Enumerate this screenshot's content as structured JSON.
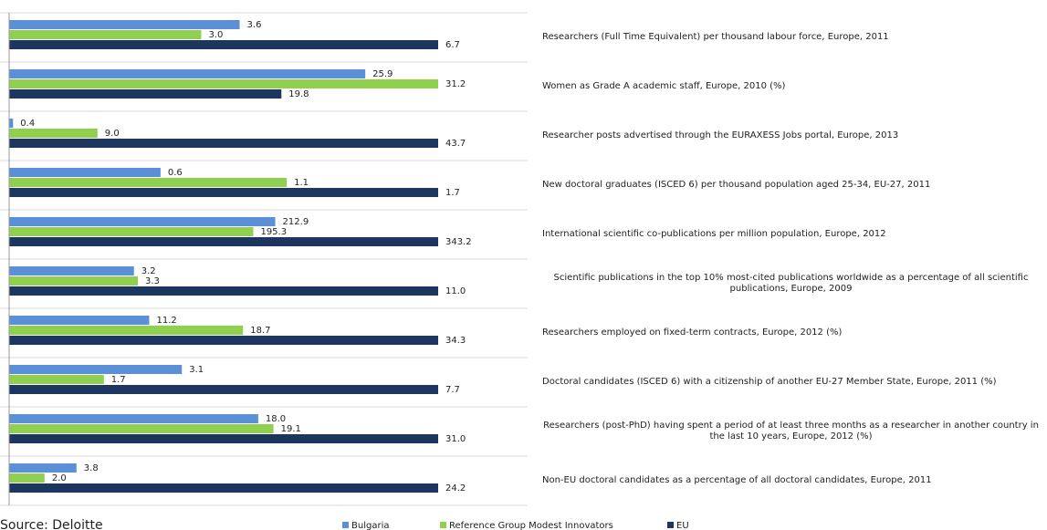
{
  "chart_data": {
    "type": "bar",
    "orientation": "horizontal",
    "source": "Source: Deloitte",
    "categories": [
      "Researchers (Full Time Equivalent) per thousand labour force, Europe, 2011",
      "Women as Grade A academic staff, Europe, 2010 (%)",
      "Researcher posts advertised through the EURAXESS Jobs portal, Europe, 2013",
      "New doctoral graduates (ISCED 6) per thousand population aged 25-34, EU-27, 2011",
      "International scientific co-publications per million population, Europe, 2012",
      "Scientific publications in the top 10% most-cited publications worldwide as a percentage of all scientific publications, Europe, 2009",
      "Researchers employed on fixed-term contracts, Europe, 2012 (%)",
      "Doctoral candidates (ISCED 6) with a citizenship of another EU-27 Member State, Europe, 2011 (%)",
      "Researchers (post-PhD) having spent a period of at least three months as a researcher in another country in the last 10 years, Europe, 2012 (%)",
      "Non-EU doctoral candidates as a percentage of all doctoral candidates, Europe, 2011"
    ],
    "series": [
      {
        "name": "Bulgaria",
        "color": "#5b8fd8",
        "values": [
          3.6,
          25.9,
          0.4,
          0.6,
          212.9,
          3.2,
          11.2,
          3.1,
          18.0,
          3.8
        ],
        "value_labels": [
          "3.6",
          "25.9",
          "0.4",
          "0.6",
          "212.9",
          "3.2",
          "11.2",
          "3.1",
          "18.0",
          "3.8"
        ]
      },
      {
        "name": "Reference Group Modest Innovators",
        "color": "#8fd14f",
        "values": [
          3.0,
          31.2,
          9.0,
          1.1,
          195.3,
          3.3,
          18.7,
          1.7,
          19.1,
          2.0
        ],
        "value_labels": [
          "3.0",
          "31.2",
          "9.0",
          "1.1",
          "195.3",
          "3.3",
          "18.7",
          "1.7",
          "19.1",
          "2.0"
        ]
      },
      {
        "name": "EU",
        "color": "#1c3660",
        "values": [
          6.7,
          19.8,
          43.7,
          1.7,
          343.2,
          11.0,
          34.3,
          7.7,
          31.0,
          24.2
        ],
        "value_labels": [
          "6.7",
          "19.8",
          "43.7",
          "1.7",
          "343.2",
          "11.0",
          "34.3",
          "7.7",
          "31.0",
          "24.2"
        ]
      }
    ]
  }
}
